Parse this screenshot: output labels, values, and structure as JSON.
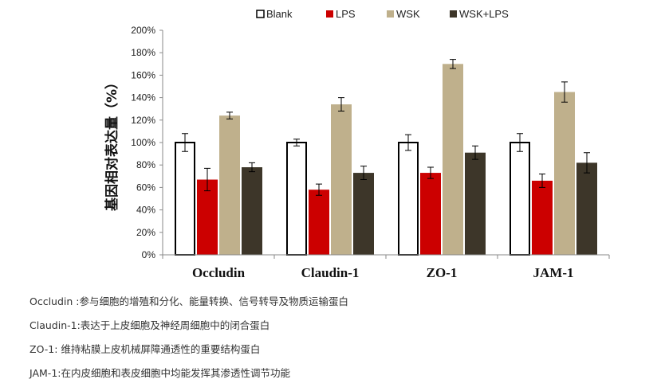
{
  "chart_data": {
    "type": "bar",
    "ylabel": "基因相对表达量（%）",
    "ylim": [
      0,
      200
    ],
    "yticks": [
      "0%",
      "20%",
      "40%",
      "60%",
      "80%",
      "100%",
      "120%",
      "140%",
      "160%",
      "180%",
      "200%"
    ],
    "categories": [
      "Occludin",
      "Claudin-1",
      "ZO-1",
      "JAM-1"
    ],
    "legend_position": "top",
    "grid": false,
    "series": [
      {
        "name": "Blank",
        "color": "#ffffff",
        "stroke": "#000000",
        "values": [
          100,
          100,
          100,
          100
        ],
        "errors": [
          8,
          3,
          7,
          8
        ]
      },
      {
        "name": "LPS",
        "color": "#cc0000",
        "stroke": "#cc0000",
        "values": [
          67,
          58,
          73,
          66
        ],
        "errors": [
          10,
          5,
          5,
          6
        ]
      },
      {
        "name": "WSK",
        "color": "#bfb08c",
        "stroke": "#bfb08c",
        "values": [
          124,
          134,
          170,
          145
        ],
        "errors": [
          3,
          6,
          4,
          9
        ]
      },
      {
        "name": "WSK+LPS",
        "color": "#3d3629",
        "stroke": "#3d3629",
        "values": [
          78,
          73,
          91,
          82
        ],
        "errors": [
          4,
          6,
          6,
          9
        ]
      }
    ]
  },
  "notes": [
    "Occludin :参与细胞的增殖和分化、能量转换、信号转导及物质运输蛋白",
    "Claudin-1:表达于上皮细胞及神经周细胞中的闭合蛋白",
    "ZO-1: 维持粘膜上皮机械屏障通透性的重要结构蛋白",
    "JAM-1:在内皮细胞和表皮细胞中均能发挥其渗透性调节功能"
  ]
}
